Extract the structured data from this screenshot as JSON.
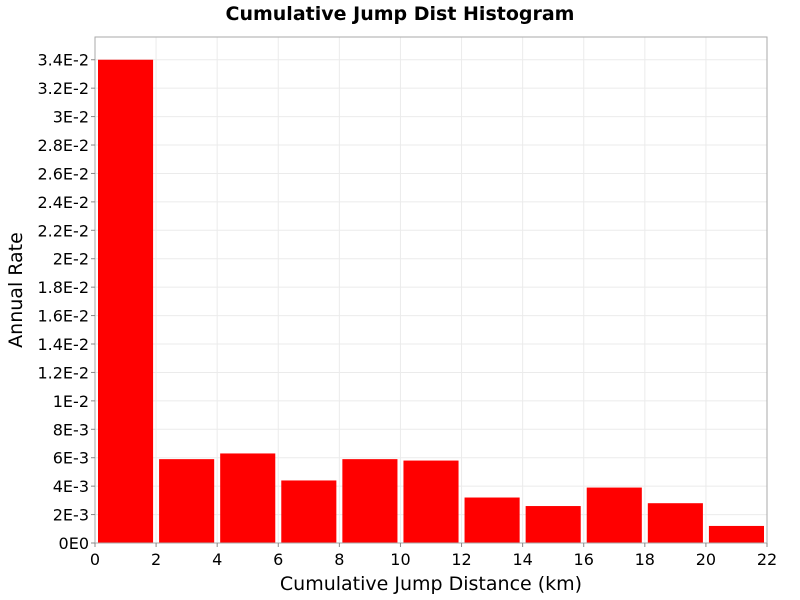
{
  "chart_data": {
    "type": "bar",
    "title": "Cumulative Jump Dist Histogram",
    "xlabel": "Cumulative Jump Distance (km)",
    "ylabel": "Annual Rate",
    "xlim": [
      0,
      22
    ],
    "ylim": [
      0,
      0.0356
    ],
    "x_ticks": [
      0,
      2,
      4,
      6,
      8,
      10,
      12,
      14,
      16,
      18,
      20,
      22
    ],
    "y_ticks": [
      0,
      0.002,
      0.004,
      0.006,
      0.008,
      0.01,
      0.012,
      0.014,
      0.016,
      0.018,
      0.02,
      0.022,
      0.024,
      0.026,
      0.028,
      0.03,
      0.032,
      0.034
    ],
    "y_tick_labels": [
      "0E0",
      "2E-3",
      "4E-3",
      "6E-3",
      "8E-3",
      "1E-2",
      "1.2E-2",
      "1.4E-2",
      "1.6E-2",
      "1.8E-2",
      "2E-2",
      "2.2E-2",
      "2.4E-2",
      "2.6E-2",
      "2.8E-2",
      "3E-2",
      "3.2E-2",
      "3.4E-2"
    ],
    "bin_width": 2,
    "grid": true,
    "bar_color": "#ff0000",
    "bins": [
      {
        "x": 1,
        "value": 0.034
      },
      {
        "x": 3,
        "value": 0.0059
      },
      {
        "x": 5,
        "value": 0.0063
      },
      {
        "x": 7,
        "value": 0.0044
      },
      {
        "x": 9,
        "value": 0.0059
      },
      {
        "x": 11,
        "value": 0.0058
      },
      {
        "x": 13,
        "value": 0.0032
      },
      {
        "x": 15,
        "value": 0.0026
      },
      {
        "x": 17,
        "value": 0.0039
      },
      {
        "x": 19,
        "value": 0.0028
      },
      {
        "x": 21,
        "value": 0.0012
      }
    ]
  }
}
